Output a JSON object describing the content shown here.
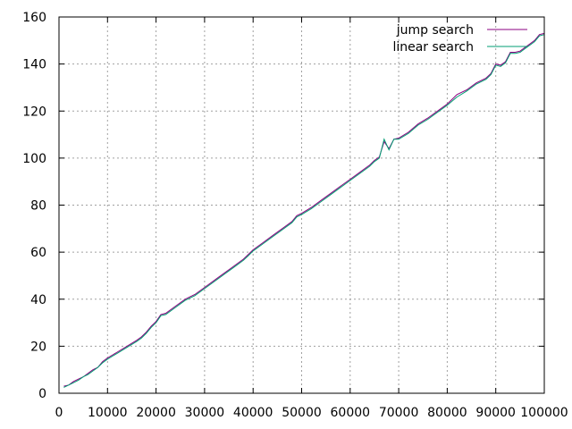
{
  "chart_data": {
    "type": "line",
    "title": "",
    "xlabel": "",
    "ylabel": "",
    "xlim": [
      0,
      100000
    ],
    "ylim": [
      0,
      160
    ],
    "xticks": [
      0,
      10000,
      20000,
      30000,
      40000,
      50000,
      60000,
      70000,
      80000,
      90000,
      100000
    ],
    "yticks": [
      0,
      20,
      40,
      60,
      80,
      100,
      120,
      140,
      160
    ],
    "grid": true,
    "legend_position": "top-right",
    "series": [
      {
        "name": "jump search",
        "color": "#8b0080",
        "x": [
          1000,
          2000,
          3000,
          4000,
          5000,
          6000,
          7000,
          8000,
          9000,
          10000,
          12000,
          14000,
          16000,
          17000,
          18000,
          19000,
          20000,
          21000,
          22000,
          24000,
          26000,
          27000,
          28000,
          30000,
          32000,
          34000,
          36000,
          38000,
          39000,
          40000,
          42000,
          44000,
          46000,
          48000,
          49000,
          50000,
          52000,
          54000,
          56000,
          58000,
          60000,
          62000,
          64000,
          65000,
          66000,
          67000,
          68000,
          69000,
          70000,
          72000,
          74000,
          76000,
          78000,
          80000,
          82000,
          84000,
          86000,
          88000,
          89000,
          90000,
          91000,
          92000,
          93000,
          94000,
          95000,
          96000,
          97000,
          98000,
          99000,
          100000
        ],
        "y": [
          3,
          3.5,
          5,
          6,
          7,
          8.5,
          10,
          11,
          13.5,
          15,
          17.5,
          20,
          22.5,
          24,
          26,
          28.5,
          30.5,
          33.5,
          34,
          37,
          40,
          41,
          42,
          45,
          48,
          51,
          54,
          57,
          59,
          61,
          64,
          67,
          70,
          73,
          75.5,
          76.5,
          79,
          82,
          85,
          88,
          91,
          94,
          97,
          99,
          100.5,
          107,
          104,
          108,
          108.5,
          111,
          114.5,
          117,
          120,
          123,
          127,
          129,
          132,
          134,
          136,
          140,
          139.5,
          141,
          145,
          145,
          145.5,
          147,
          148.5,
          150,
          152.5,
          153
        ]
      },
      {
        "name": "linear search",
        "color": "#009e73",
        "x": [
          1000,
          2000,
          3000,
          4000,
          5000,
          6000,
          7000,
          8000,
          9000,
          10000,
          12000,
          14000,
          16000,
          17000,
          18000,
          19000,
          20000,
          21000,
          22000,
          24000,
          26000,
          27000,
          28000,
          30000,
          32000,
          34000,
          36000,
          38000,
          39000,
          40000,
          42000,
          44000,
          46000,
          48000,
          49000,
          50000,
          52000,
          54000,
          56000,
          58000,
          60000,
          62000,
          64000,
          65000,
          66000,
          67000,
          68000,
          69000,
          70000,
          72000,
          74000,
          76000,
          78000,
          80000,
          82000,
          84000,
          86000,
          88000,
          89000,
          90000,
          91000,
          92000,
          93000,
          94000,
          95000,
          96000,
          97000,
          98000,
          99000,
          100000
        ],
        "y": [
          2.5,
          3.5,
          4.5,
          5.5,
          7,
          8,
          9.5,
          11,
          13,
          14.5,
          17,
          19.5,
          22,
          23.5,
          25.5,
          28,
          30,
          33,
          33.5,
          36.5,
          39.5,
          40.5,
          41.5,
          44.5,
          47.5,
          50.5,
          53.5,
          56.5,
          58.5,
          60.5,
          63.5,
          66.5,
          69.5,
          72.5,
          75,
          76,
          78.5,
          81.5,
          84.5,
          87.5,
          90.5,
          93.5,
          96.5,
          98.5,
          100,
          108,
          103.5,
          108,
          108,
          110.5,
          114,
          116.5,
          119.5,
          122.5,
          126,
          128.5,
          131.5,
          133.5,
          135.5,
          139.5,
          139,
          140.5,
          144.5,
          144.5,
          145,
          146.5,
          148,
          149.5,
          152,
          152.5
        ]
      }
    ]
  }
}
